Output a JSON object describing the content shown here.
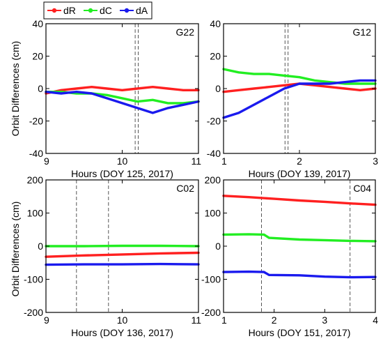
{
  "legend": [
    {
      "label": "dR",
      "color": "#ff2020"
    },
    {
      "label": "dC",
      "color": "#22ee22"
    },
    {
      "label": "dA",
      "color": "#1a1aee"
    }
  ],
  "ylabel_shared": "Orbit Differences (cm)",
  "chart_data": [
    {
      "type": "line",
      "panel_label": "G22",
      "xlabel": "Hours (DOY 125, 2017)",
      "ylabel": "Orbit Differences (cm)",
      "xlim": [
        9,
        11
      ],
      "xticks": [
        9,
        10,
        11
      ],
      "ylim": [
        -40,
        40
      ],
      "yticks": [
        -40,
        -20,
        0,
        20,
        40
      ],
      "vlines": [
        10.17,
        10.21
      ],
      "series": [
        {
          "name": "dR",
          "color": "#ff2020",
          "x": [
            9,
            9.2,
            9.4,
            9.6,
            9.8,
            10,
            10.2,
            10.4,
            10.6,
            10.8,
            11
          ],
          "y": [
            -3,
            -1,
            0,
            1,
            0,
            -1,
            0,
            1,
            0,
            -1,
            -1
          ]
        },
        {
          "name": "dC",
          "color": "#22ee22",
          "x": [
            9,
            9.2,
            9.4,
            9.6,
            9.8,
            10,
            10.2,
            10.4,
            10.6,
            10.8,
            11
          ],
          "y": [
            -2,
            -2,
            -3,
            -3,
            -4,
            -6,
            -8,
            -7,
            -9,
            -9,
            -8
          ]
        },
        {
          "name": "dA",
          "color": "#1a1aee",
          "x": [
            9,
            9.2,
            9.4,
            9.6,
            9.8,
            10,
            10.2,
            10.4,
            10.6,
            10.8,
            11
          ],
          "y": [
            -2,
            -3,
            -2,
            -3,
            -6,
            -9,
            -12,
            -15,
            -12,
            -10,
            -8
          ]
        }
      ]
    },
    {
      "type": "line",
      "panel_label": "G12",
      "xlabel": "Hours (DOY 139, 2017)",
      "ylabel": "",
      "xlim": [
        1,
        3
      ],
      "xticks": [
        1,
        2,
        3
      ],
      "ylim": [
        -40,
        40
      ],
      "yticks": [
        -40,
        -20,
        0,
        20,
        40
      ],
      "vlines": [
        1.81,
        1.85
      ],
      "series": [
        {
          "name": "dR",
          "color": "#ff2020",
          "x": [
            1,
            1.2,
            1.4,
            1.6,
            1.8,
            2,
            2.2,
            2.4,
            2.6,
            2.8,
            3
          ],
          "y": [
            -2,
            -1,
            0,
            1,
            2,
            3,
            2,
            1,
            0,
            -1,
            0
          ]
        },
        {
          "name": "dC",
          "color": "#22ee22",
          "x": [
            1,
            1.2,
            1.4,
            1.6,
            1.8,
            2,
            2.2,
            2.4,
            2.6,
            2.8,
            3
          ],
          "y": [
            12,
            10,
            9,
            9,
            8,
            7,
            5,
            4,
            3,
            3,
            3
          ]
        },
        {
          "name": "dA",
          "color": "#1a1aee",
          "x": [
            1,
            1.2,
            1.4,
            1.6,
            1.8,
            2,
            2.2,
            2.4,
            2.6,
            2.8,
            3
          ],
          "y": [
            -18,
            -15,
            -10,
            -5,
            0,
            3,
            3,
            3,
            4,
            5,
            5
          ]
        }
      ]
    },
    {
      "type": "line",
      "panel_label": "C02",
      "xlabel": "Hours (DOY 136, 2017)",
      "ylabel": "Orbit Differences (cm)",
      "xlim": [
        9,
        11
      ],
      "xticks": [
        9,
        10,
        11
      ],
      "ylim": [
        -200,
        200
      ],
      "yticks": [
        -200,
        -100,
        0,
        100,
        200
      ],
      "vlines": [
        9.4,
        9.82
      ],
      "series": [
        {
          "name": "dR",
          "color": "#ff2020",
          "x": [
            9,
            9.5,
            10,
            10.5,
            11
          ],
          "y": [
            -32,
            -28,
            -25,
            -22,
            -20
          ]
        },
        {
          "name": "dC",
          "color": "#22ee22",
          "x": [
            9,
            9.5,
            10,
            10.5,
            11
          ],
          "y": [
            0,
            0,
            1,
            1,
            0
          ]
        },
        {
          "name": "dA",
          "color": "#1a1aee",
          "x": [
            9,
            9.5,
            10,
            10.5,
            11
          ],
          "y": [
            -56,
            -55,
            -55,
            -54,
            -55
          ]
        }
      ]
    },
    {
      "type": "line",
      "panel_label": "C04",
      "xlabel": "Hours (DOY 151, 2017)",
      "ylabel": "",
      "xlim": [
        1,
        4
      ],
      "xticks": [
        1,
        2,
        3,
        4
      ],
      "ylim": [
        -200,
        200
      ],
      "yticks": [
        -200,
        -100,
        0,
        100,
        200
      ],
      "vlines": [
        1.75,
        3.5
      ],
      "series": [
        {
          "name": "dR",
          "color": "#ff2020",
          "x": [
            1,
            1.5,
            2,
            2.5,
            3,
            3.5,
            4
          ],
          "y": [
            152,
            148,
            143,
            138,
            134,
            129,
            125
          ]
        },
        {
          "name": "dC",
          "color": "#22ee22",
          "x": [
            1,
            1.5,
            1.8,
            1.9,
            2.5,
            3,
            3.5,
            4
          ],
          "y": [
            35,
            36,
            35,
            25,
            20,
            18,
            16,
            15
          ]
        },
        {
          "name": "dA",
          "color": "#1a1aee",
          "x": [
            1,
            1.5,
            1.8,
            1.9,
            2.5,
            3,
            3.5,
            4
          ],
          "y": [
            -78,
            -77,
            -78,
            -87,
            -88,
            -92,
            -94,
            -93
          ]
        }
      ]
    }
  ]
}
